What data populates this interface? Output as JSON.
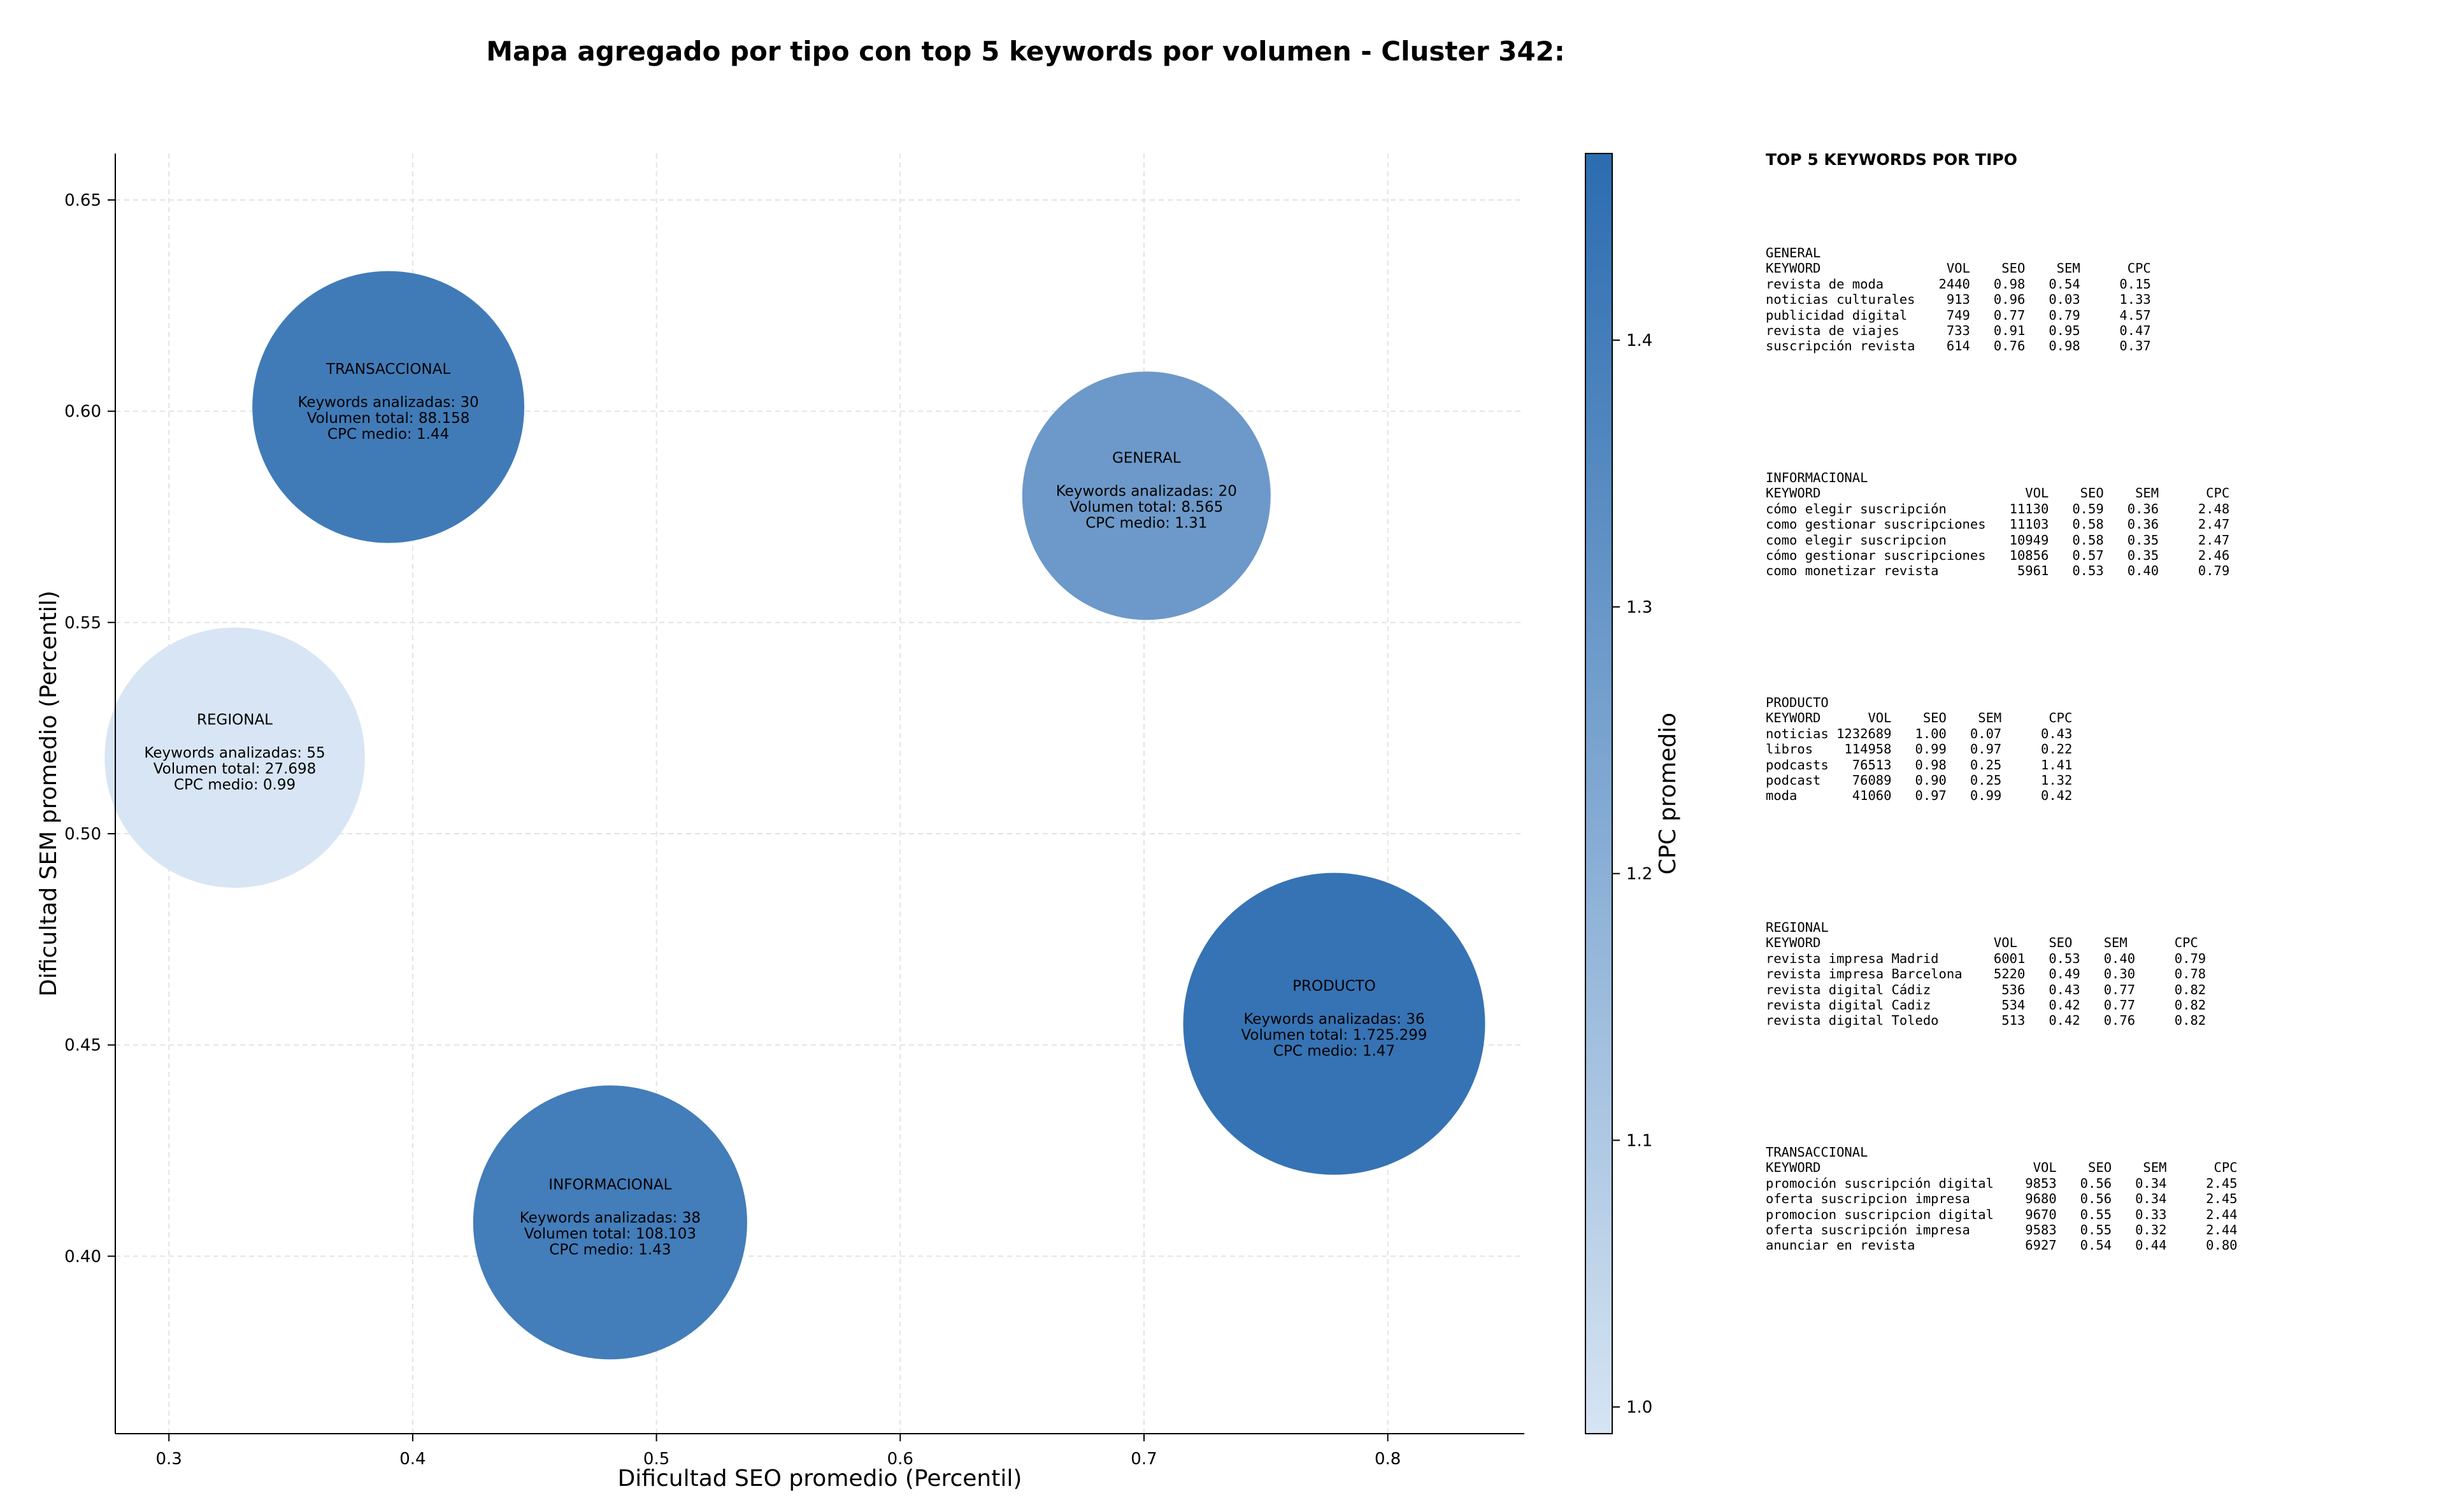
{
  "chart_data": {
    "type": "scatter",
    "title": "Mapa agregado por tipo con top 5 keywords por volumen - Cluster 342:",
    "xlabel": "Dificultad SEO promedio (Percentil)",
    "ylabel": "Dificultad SEM promedio (Percentil)",
    "xlim": [
      0.278,
      0.856
    ],
    "ylim": [
      0.358,
      0.661
    ],
    "xticks": [
      "0.3",
      "0.4",
      "0.5",
      "0.6",
      "0.7",
      "0.8"
    ],
    "yticks": [
      "0.40",
      "0.45",
      "0.50",
      "0.55",
      "0.60",
      "0.65"
    ],
    "grid": true,
    "colorbar": {
      "label": "CPC promedio",
      "range": [
        0.99,
        1.47
      ],
      "ticks": [
        "1.0",
        "1.1",
        "1.2",
        "1.3",
        "1.4"
      ],
      "color_low": "#d6e4f3",
      "color_high": "#2b6cb0"
    },
    "points": [
      {
        "name": "TRANSACCIONAL",
        "x": 0.39,
        "y": 0.601,
        "keywords_label": "Keywords analizadas: 30",
        "volume_label": "Volumen total: 88.158",
        "cpc_label": "CPC medio: 1.44",
        "keywords": 30,
        "volume": 88158,
        "cpc": 1.44
      },
      {
        "name": "GENERAL",
        "x": 0.701,
        "y": 0.58,
        "keywords_label": "Keywords analizadas: 20",
        "volume_label": "Volumen total: 8.565",
        "cpc_label": "CPC medio: 1.31",
        "keywords": 20,
        "volume": 8565,
        "cpc": 1.31
      },
      {
        "name": "REGIONAL",
        "x": 0.327,
        "y": 0.518,
        "keywords_label": "Keywords analizadas: 55",
        "volume_label": "Volumen total: 27.698",
        "cpc_label": "CPC medio: 0.99",
        "keywords": 55,
        "volume": 27698,
        "cpc": 0.99
      },
      {
        "name": "PRODUCTO",
        "x": 0.778,
        "y": 0.455,
        "keywords_label": "Keywords analizadas: 36",
        "volume_label": "Volumen total: 1.725.299",
        "cpc_label": "CPC medio: 1.47",
        "keywords": 36,
        "volume": 1725299,
        "cpc": 1.47
      },
      {
        "name": "INFORMACIONAL",
        "x": 0.481,
        "y": 0.408,
        "keywords_label": "Keywords analizadas: 38",
        "volume_label": "Volumen total: 108.103",
        "cpc_label": "CPC medio: 1.43",
        "keywords": 38,
        "volume": 108103,
        "cpc": 1.43
      }
    ]
  },
  "top_keywords": {
    "title": "TOP 5 KEYWORDS POR TIPO",
    "groups": [
      {
        "text": "GENERAL\nKEYWORD                VOL    SEO    SEM      CPC\nrevista de moda       2440   0.98   0.54     0.15\nnoticias culturales    913   0.96   0.03     1.33\npublicidad digital     749   0.77   0.79     4.57\nrevista de viajes      733   0.91   0.95     0.47\nsuscripción revista    614   0.76   0.98     0.37"
      },
      {
        "text": "INFORMACIONAL\nKEYWORD                          VOL    SEO    SEM      CPC\ncómo elegir suscripción        11130   0.59   0.36     2.48\ncomo gestionar suscripciones   11103   0.58   0.36     2.47\ncomo elegir suscripcion        10949   0.58   0.35     2.47\ncómo gestionar suscripciones   10856   0.57   0.35     2.46\ncomo monetizar revista          5961   0.53   0.40     0.79"
      },
      {
        "text": "PRODUCTO\nKEYWORD      VOL    SEO    SEM      CPC\nnoticias 1232689   1.00   0.07     0.43\nlibros    114958   0.99   0.97     0.22\npodcasts   76513   0.98   0.25     1.41\npodcast    76089   0.90   0.25     1.32\nmoda       41060   0.97   0.99     0.42"
      },
      {
        "text": "REGIONAL\nKEYWORD                      VOL    SEO    SEM      CPC\nrevista impresa Madrid       6001   0.53   0.40     0.79\nrevista impresa Barcelona    5220   0.49   0.30     0.78\nrevista digital Cádiz         536   0.43   0.77     0.82\nrevista digital Cadiz         534   0.42   0.77     0.82\nrevista digital Toledo        513   0.42   0.76     0.82"
      },
      {
        "text": "TRANSACCIONAL\nKEYWORD                           VOL    SEO    SEM      CPC\npromoción suscripción digital    9853   0.56   0.34     2.45\noferta suscripcion impresa       9680   0.56   0.34     2.45\npromocion suscripcion digital    9670   0.55   0.33     2.44\noferta suscripción impresa       9583   0.55   0.32     2.44\nanunciar en revista              6927   0.54   0.44     0.80"
      }
    ]
  }
}
